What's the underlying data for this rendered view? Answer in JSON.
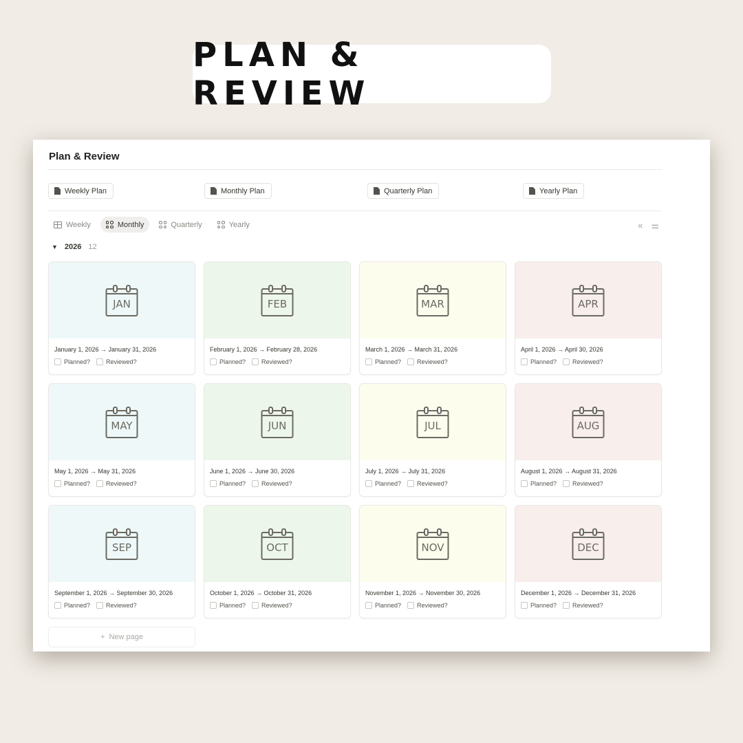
{
  "banner": {
    "title": "PLAN & REVIEW"
  },
  "page": {
    "title": "Plan & Review"
  },
  "buttons": [
    {
      "label": "Weekly Plan"
    },
    {
      "label": "Monthly Plan"
    },
    {
      "label": "Quarterly Plan"
    },
    {
      "label": "Yearly Plan"
    }
  ],
  "tabs": [
    {
      "label": "Weekly",
      "icon": "table-icon"
    },
    {
      "label": "Monthly",
      "icon": "gallery-icon",
      "active": true
    },
    {
      "label": "Quarterly",
      "icon": "gallery-icon"
    },
    {
      "label": "Yearly",
      "icon": "gallery-icon"
    }
  ],
  "group": {
    "label": "2026",
    "count": "12"
  },
  "checkbox_labels": {
    "planned": "Planned?",
    "reviewed": "Reviewed?"
  },
  "cover_colors": [
    "#eef8f8",
    "#edf6ea",
    "#fdfdee",
    "#f8eeec"
  ],
  "cards": [
    {
      "month": "JAN",
      "dates": "January 1, 2026 → January 31, 2026"
    },
    {
      "month": "FEB",
      "dates": "February 1, 2026 → February 28, 2026"
    },
    {
      "month": "MAR",
      "dates": "March 1, 2026 → March 31, 2026"
    },
    {
      "month": "APR",
      "dates": "April 1, 2026 → April 30, 2026"
    },
    {
      "month": "MAY",
      "dates": "May 1, 2026 → May 31, 2026"
    },
    {
      "month": "JUN",
      "dates": "June 1, 2026 → June 30, 2026"
    },
    {
      "month": "JUL",
      "dates": "July 1, 2026 → July 31, 2026"
    },
    {
      "month": "AUG",
      "dates": "August 1, 2026 → August 31, 2026"
    },
    {
      "month": "SEP",
      "dates": "September 1, 2026 → September 30, 2026"
    },
    {
      "month": "OCT",
      "dates": "October 1, 2026 → October 31, 2026"
    },
    {
      "month": "NOV",
      "dates": "November 1, 2026 → November 30, 2026"
    },
    {
      "month": "DEC",
      "dates": "December 1, 2026 → December 31, 2026"
    }
  ],
  "new_page": {
    "label": "New page"
  }
}
